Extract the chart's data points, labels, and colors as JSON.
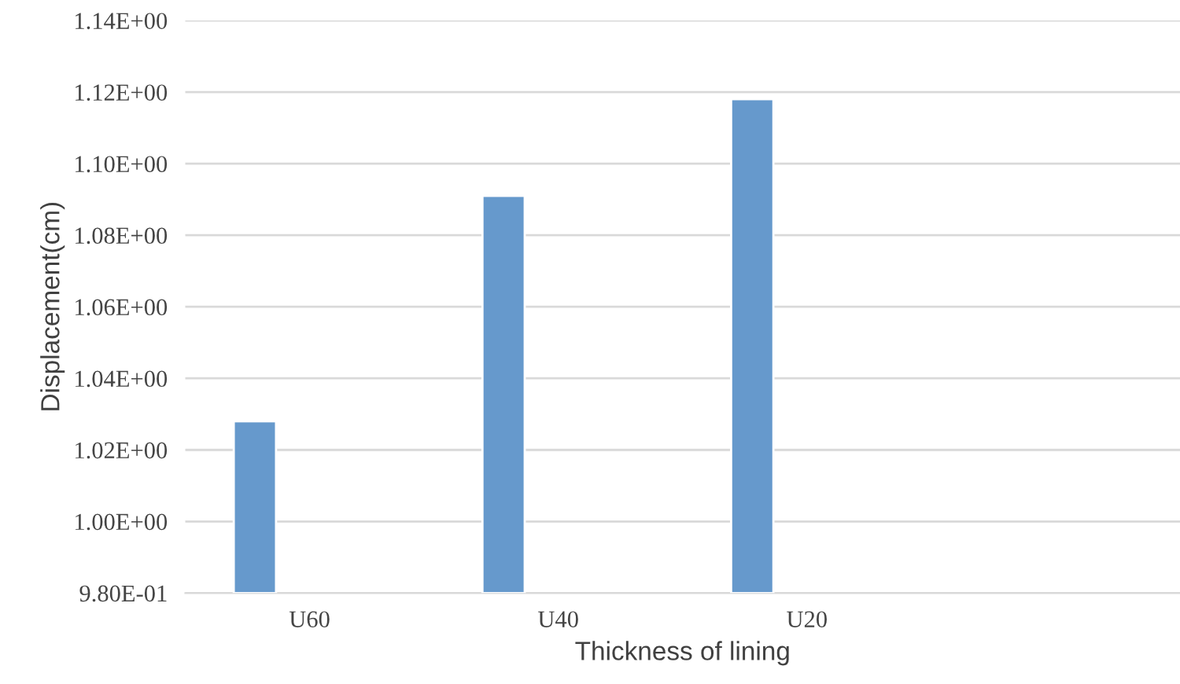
{
  "chart_data": {
    "type": "bar",
    "xlabel": "Thickness of lining",
    "ylabel": "Displacement(cm)",
    "categories": [
      "U60",
      "U40",
      "U20",
      null
    ],
    "series": [
      {
        "color": "#6699cc",
        "values": [
          1.028,
          1.091,
          1.118,
          null
        ]
      }
    ],
    "ylim": [
      0.98,
      1.14
    ],
    "yticks": [
      {
        "value": 0.98,
        "label": "9.80E-01"
      },
      {
        "value": 1.0,
        "label": "1.00E+00"
      },
      {
        "value": 1.02,
        "label": "1.02E+00"
      },
      {
        "value": 1.04,
        "label": "1.04E+00"
      },
      {
        "value": 1.06,
        "label": "1.06E+00"
      },
      {
        "value": 1.08,
        "label": "1.08E+00"
      },
      {
        "value": 1.1,
        "label": "1.10E+00"
      },
      {
        "value": 1.12,
        "label": "1.12E+00"
      },
      {
        "value": 1.14,
        "label": "1.14E+00"
      }
    ],
    "grid": "y",
    "legend": false
  }
}
